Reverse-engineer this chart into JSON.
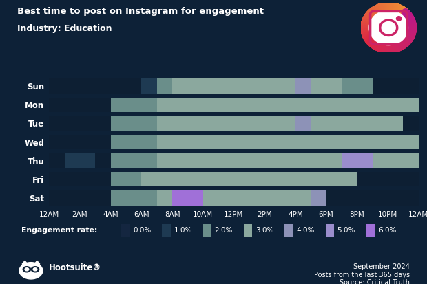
{
  "title_line1": "Best time to post on Instagram for engagement",
  "title_line2": "Industry: Education",
  "days": [
    "Sun",
    "Mon",
    "Tue",
    "Wed",
    "Thu",
    "Fri",
    "Sat"
  ],
  "hours": [
    "12AM",
    "2AM",
    "4AM",
    "6AM",
    "8AM",
    "10AM",
    "12PM",
    "2PM",
    "4PM",
    "6PM",
    "8PM",
    "10PM",
    "12AM"
  ],
  "background_color": "#0d2137",
  "heatmap_data": [
    [
      0.0,
      0.0,
      0.0,
      0.0,
      0.0,
      0.0,
      1.0,
      2.0,
      3.0,
      3.0,
      3.0,
      3.0,
      3.0,
      3.0,
      3.0,
      3.0,
      4.0,
      3.0,
      3.0,
      2.0,
      2.0,
      0.0,
      0.0,
      0.0
    ],
    [
      0.0,
      0.0,
      0.0,
      0.0,
      2.0,
      2.0,
      2.0,
      3.0,
      3.0,
      3.0,
      3.0,
      3.0,
      3.0,
      3.0,
      3.0,
      3.0,
      3.0,
      3.0,
      3.0,
      3.0,
      3.0,
      3.0,
      3.0,
      3.0
    ],
    [
      0.0,
      0.0,
      0.0,
      0.0,
      2.0,
      2.0,
      2.0,
      3.0,
      3.0,
      3.0,
      3.0,
      3.0,
      3.0,
      3.0,
      3.0,
      3.0,
      4.0,
      3.0,
      3.0,
      3.0,
      3.0,
      3.0,
      3.0,
      0.0
    ],
    [
      0.0,
      0.0,
      0.0,
      0.0,
      2.0,
      2.0,
      2.0,
      3.0,
      3.0,
      3.0,
      3.0,
      3.0,
      3.0,
      3.0,
      3.0,
      3.0,
      3.0,
      3.0,
      3.0,
      3.0,
      3.0,
      3.0,
      3.0,
      3.0
    ],
    [
      0.0,
      1.0,
      1.0,
      0.0,
      2.0,
      2.0,
      2.0,
      3.0,
      3.0,
      3.0,
      3.0,
      3.0,
      3.0,
      3.0,
      3.0,
      3.0,
      3.0,
      3.0,
      3.0,
      5.0,
      5.0,
      3.0,
      3.0,
      3.0
    ],
    [
      0.0,
      0.0,
      0.0,
      0.0,
      2.0,
      2.0,
      3.0,
      3.0,
      3.0,
      3.0,
      3.0,
      3.0,
      3.0,
      3.0,
      3.0,
      3.0,
      3.0,
      3.0,
      3.0,
      3.0,
      0.0,
      0.0,
      0.0,
      0.0
    ],
    [
      0.0,
      0.0,
      0.0,
      0.0,
      2.0,
      2.0,
      2.0,
      3.0,
      6.0,
      6.0,
      3.0,
      3.0,
      3.0,
      3.0,
      3.0,
      3.0,
      3.0,
      4.0,
      0.0,
      0.0,
      0.0,
      0.0,
      0.0,
      0.0
    ]
  ],
  "legend_labels": [
    "0.0%",
    "1.0%",
    "2.0%",
    "3.0%",
    "4.0%",
    "5.0%",
    "6.0%"
  ],
  "legend_colors": [
    "#142640",
    "#1e3a52",
    "#6a8e8a",
    "#8ba89e",
    "#8d92b7",
    "#9a8dcc",
    "#a070d8"
  ],
  "footer_left": "Hootsuite®",
  "footer_right_line1": "September 2024",
  "footer_right_line2": "Posts from the last 365 days",
  "footer_right_line3": "Source: Critical Truth",
  "colormap_stops": [
    "#0d1f33",
    "#1e3a52",
    "#6a8e8a",
    "#8ba89e",
    "#8d92b7",
    "#9a8dcc",
    "#a070d8"
  ]
}
